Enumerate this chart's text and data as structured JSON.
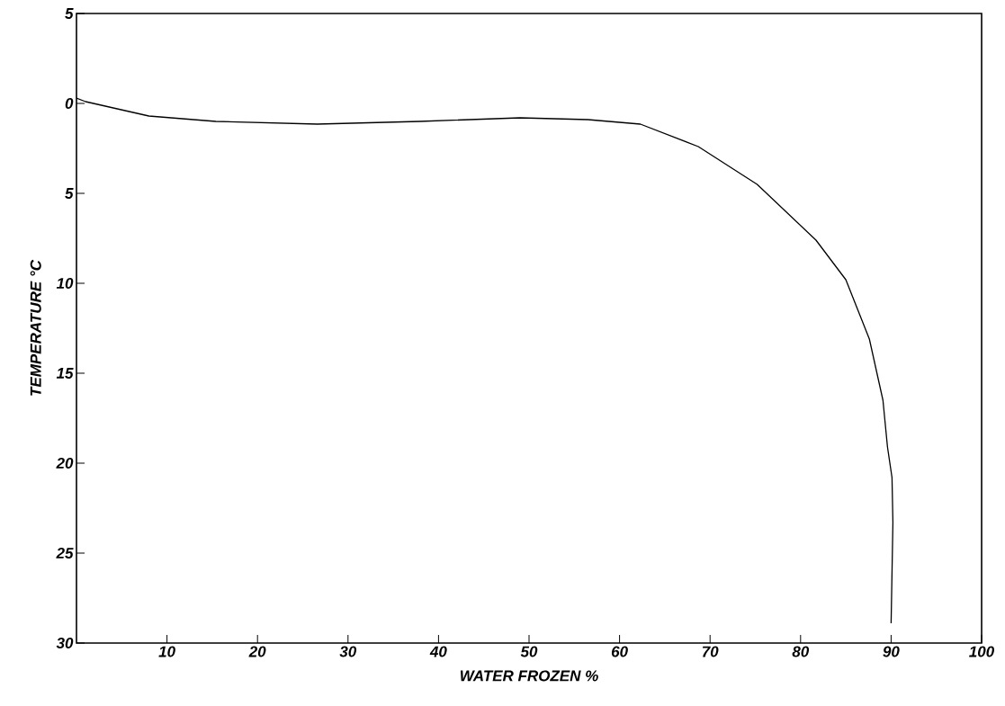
{
  "chart_data": {
    "type": "line",
    "xlabel": "WATER FROZEN  %",
    "ylabel": "TEMPERATURE  °C",
    "xlim": [
      0,
      100
    ],
    "ylim": [
      -30,
      5
    ],
    "xticks": [
      10,
      20,
      30,
      40,
      50,
      60,
      70,
      80,
      90,
      100
    ],
    "yticks": [
      {
        "value": -30,
        "label": "30"
      },
      {
        "value": -25,
        "label": "25"
      },
      {
        "value": -20,
        "label": "20"
      },
      {
        "value": -15,
        "label": "15"
      },
      {
        "value": -10,
        "label": "10"
      },
      {
        "value": -5,
        "label": "5"
      },
      0,
      5
    ],
    "grid": false,
    "marker": "none",
    "line_style": "solid",
    "series": [
      {
        "color": "#000000",
        "x": [
          0,
          1,
          8,
          15.4,
          26.6,
          37.9,
          49,
          56.5,
          62.3,
          68.7,
          75.2,
          81.7,
          85,
          87.6,
          89.1,
          89.6,
          90.1,
          90.2,
          90
        ],
        "values": [
          0.3,
          0.1,
          -0.7,
          -1.0,
          -1.15,
          -1.0,
          -0.8,
          -0.9,
          -1.15,
          -2.4,
          -4.5,
          -7.6,
          -9.8,
          -13.1,
          -16.5,
          -19.1,
          -20.8,
          -23.3,
          -28.9
        ]
      }
    ]
  }
}
